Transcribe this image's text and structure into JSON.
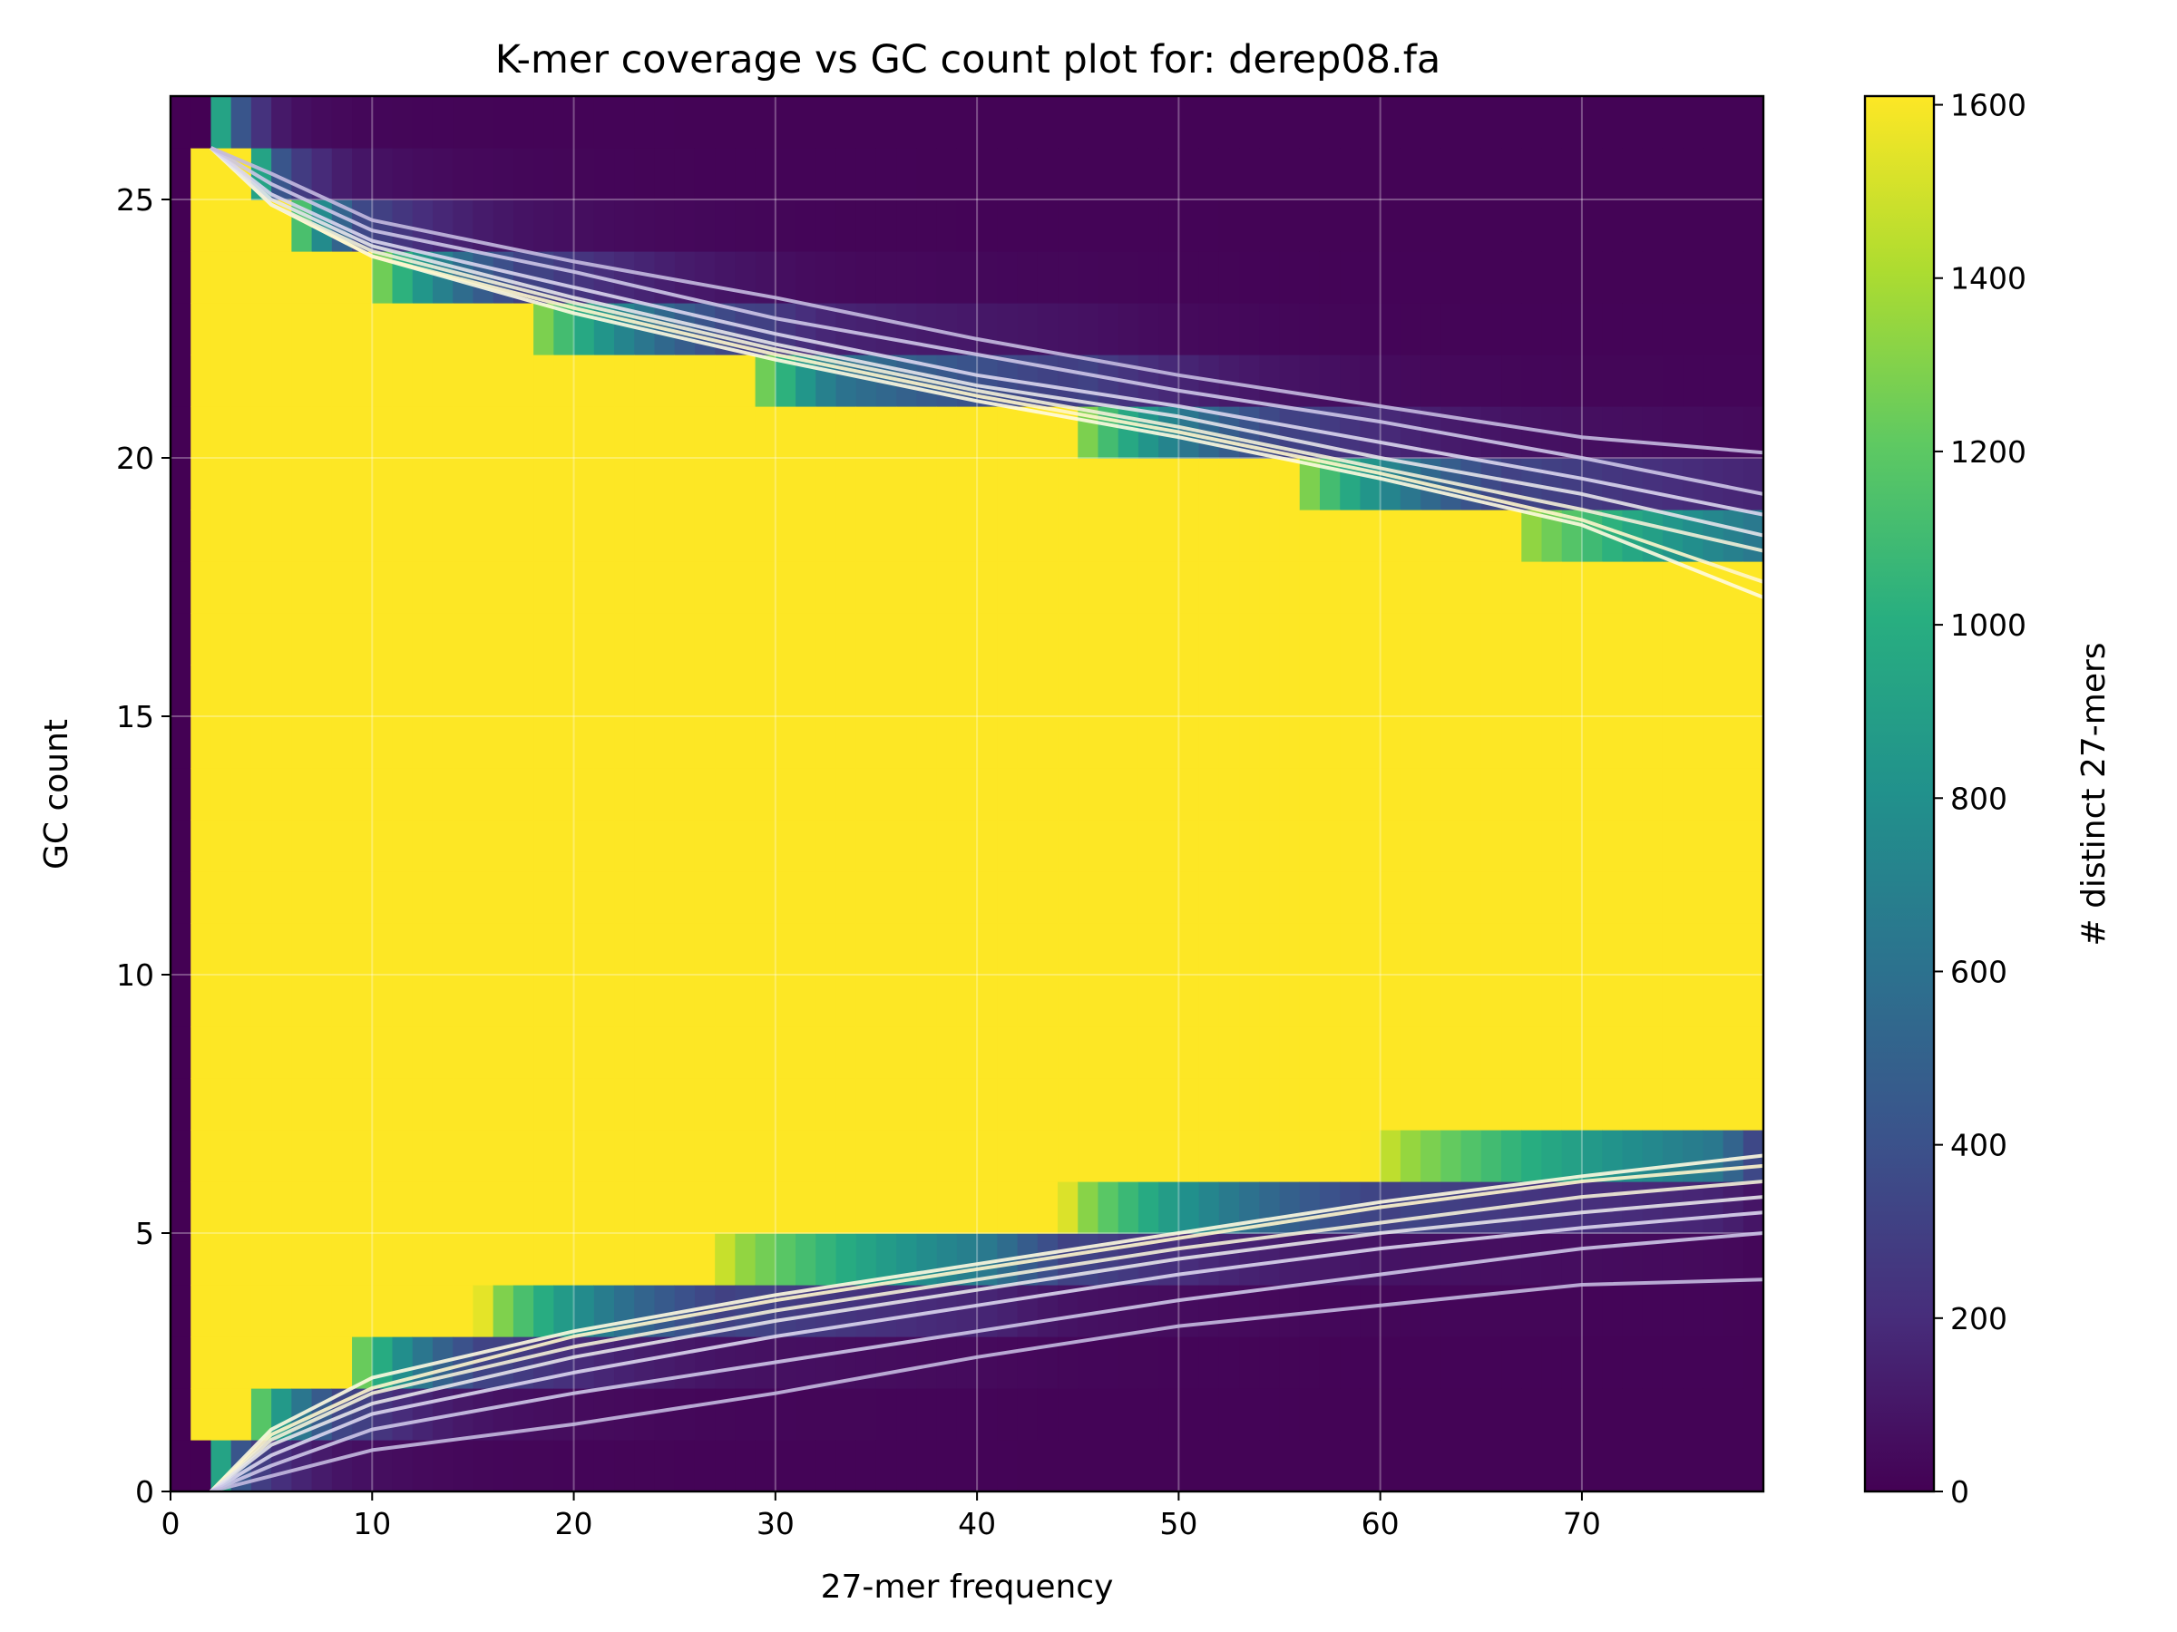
{
  "chart_data": {
    "type": "heatmap",
    "title": "K-mer coverage vs GC count plot for: derep08.fa",
    "xlabel": "27-mer frequency",
    "ylabel": "GC count",
    "xlim": [
      0,
      79
    ],
    "ylim": [
      0,
      27
    ],
    "x_ticks": [
      0,
      10,
      20,
      30,
      40,
      50,
      60,
      70
    ],
    "y_ticks": [
      0,
      5,
      10,
      15,
      20,
      25
    ],
    "grid": true,
    "colormap": "viridis",
    "colorbar": {
      "label": "# distinct 27-mers",
      "range": [
        0,
        1610
      ],
      "ticks": [
        0,
        200,
        400,
        600,
        800,
        1000,
        1200,
        1400,
        1600
      ]
    },
    "high_gc_boundary": {
      "x": [
        2,
        6,
        10,
        18,
        29,
        33,
        45,
        56,
        67,
        79
      ],
      "gc": [
        26,
        24,
        23,
        22,
        21,
        20.5,
        20,
        19,
        18,
        17.5
      ]
    },
    "low_gc_boundary": {
      "x": [
        2,
        4,
        9,
        16,
        28,
        41,
        45,
        61,
        77,
        79
      ],
      "gc": [
        1,
        2,
        3,
        4,
        5,
        5.5,
        6,
        7,
        7.5,
        8
      ]
    },
    "contour_lines": {
      "x": [
        2,
        5,
        10,
        20,
        30,
        40,
        50,
        60,
        70,
        79
      ],
      "upper": [
        [
          26.0,
          24.9,
          23.9,
          22.8,
          21.9,
          21.1,
          20.4,
          19.6,
          18.7,
          17.3
        ],
        [
          26.0,
          24.9,
          23.9,
          22.9,
          22.0,
          21.2,
          20.5,
          19.7,
          18.8,
          17.6
        ],
        [
          26.0,
          24.9,
          24.0,
          23.0,
          22.1,
          21.3,
          20.6,
          19.8,
          19.0,
          18.2
        ],
        [
          26.0,
          25.0,
          24.1,
          23.1,
          22.2,
          21.4,
          20.8,
          20.0,
          19.3,
          18.5
        ],
        [
          26.0,
          25.1,
          24.2,
          23.3,
          22.4,
          21.6,
          21.0,
          20.3,
          19.6,
          18.9
        ],
        [
          26.0,
          25.3,
          24.4,
          23.6,
          22.7,
          22.0,
          21.3,
          20.7,
          20.0,
          19.3
        ],
        [
          26.0,
          25.5,
          24.6,
          23.8,
          23.1,
          22.3,
          21.6,
          21.0,
          20.4,
          20.1
        ]
      ],
      "lower": [
        [
          0.0,
          1.2,
          2.2,
          3.1,
          3.8,
          4.4,
          5.0,
          5.6,
          6.1,
          6.5
        ],
        [
          0.0,
          1.1,
          2.0,
          3.0,
          3.7,
          4.3,
          4.9,
          5.5,
          6.0,
          6.3
        ],
        [
          0.0,
          1.0,
          1.9,
          2.8,
          3.5,
          4.1,
          4.7,
          5.2,
          5.7,
          6.0
        ],
        [
          0.0,
          0.9,
          1.7,
          2.6,
          3.3,
          3.9,
          4.5,
          5.0,
          5.4,
          5.7
        ],
        [
          0.0,
          0.7,
          1.5,
          2.3,
          3.0,
          3.6,
          4.2,
          4.7,
          5.1,
          5.4
        ],
        [
          0.0,
          0.5,
          1.2,
          1.9,
          2.5,
          3.1,
          3.7,
          4.2,
          4.7,
          5.0
        ],
        [
          0.0,
          0.3,
          0.8,
          1.3,
          1.9,
          2.6,
          3.2,
          3.6,
          4.0,
          4.1
        ]
      ]
    }
  }
}
